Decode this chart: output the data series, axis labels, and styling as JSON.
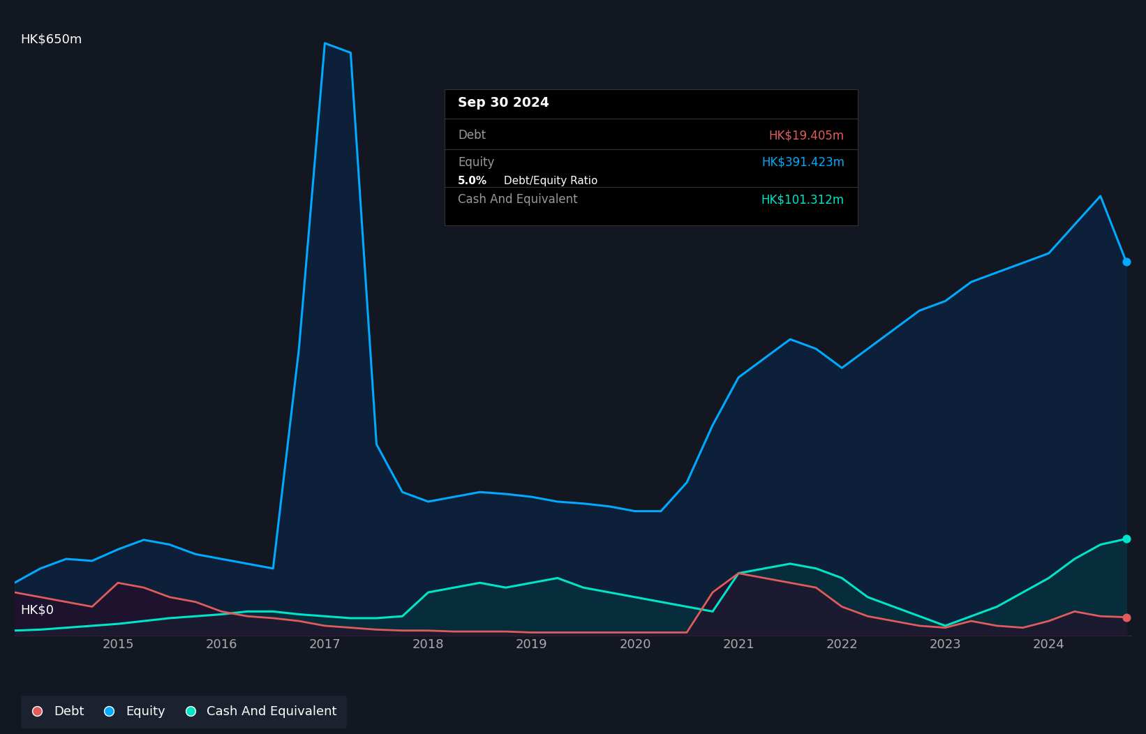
{
  "bg_color": "#131722",
  "plot_bg_color": "#131722",
  "grid_color": "#2a2e39",
  "ylabel_top": "HK$650m",
  "ylabel_bottom": "HK$0",
  "x_ticks": [
    2015,
    2016,
    2017,
    2018,
    2019,
    2020,
    2021,
    2022,
    2023,
    2024
  ],
  "debt_color": "#e05c5c",
  "equity_color": "#00aaff",
  "cash_color": "#00e5c8",
  "equity_fill_color": "#003366",
  "cash_fill_color": "#004040",
  "debt_fill_color": "#3a0020",
  "tooltip_bg": "#000000",
  "tooltip_date": "Sep 30 2024",
  "tooltip_debt_label": "Debt",
  "tooltip_debt_value": "HK$19.405m",
  "tooltip_equity_label": "Equity",
  "tooltip_equity_value": "HK$391.423m",
  "tooltip_ratio_bold": "5.0%",
  "tooltip_ratio_rest": " Debt/Equity Ratio",
  "tooltip_cash_label": "Cash And Equivalent",
  "tooltip_cash_value": "HK$101.312m",
  "legend_labels": [
    "Debt",
    "Equity",
    "Cash And Equivalent"
  ],
  "ylim": [
    0,
    650
  ],
  "time_data": {
    "dates": [
      2014.0,
      2014.25,
      2014.5,
      2014.75,
      2015.0,
      2015.25,
      2015.5,
      2015.75,
      2016.0,
      2016.25,
      2016.5,
      2016.75,
      2017.0,
      2017.25,
      2017.5,
      2017.75,
      2018.0,
      2018.25,
      2018.5,
      2018.75,
      2019.0,
      2019.25,
      2019.5,
      2019.75,
      2020.0,
      2020.25,
      2020.5,
      2020.75,
      2021.0,
      2021.25,
      2021.5,
      2021.75,
      2022.0,
      2022.25,
      2022.5,
      2022.75,
      2023.0,
      2023.25,
      2023.5,
      2023.75,
      2024.0,
      2024.25,
      2024.5,
      2024.75
    ],
    "equity": [
      55,
      70,
      80,
      78,
      90,
      100,
      95,
      85,
      80,
      75,
      70,
      300,
      620,
      610,
      200,
      150,
      140,
      145,
      150,
      148,
      145,
      140,
      138,
      135,
      130,
      130,
      160,
      220,
      270,
      290,
      310,
      300,
      280,
      300,
      320,
      340,
      350,
      370,
      380,
      390,
      400,
      430,
      460,
      391
    ],
    "debt": [
      45,
      40,
      35,
      30,
      55,
      50,
      40,
      35,
      25,
      20,
      18,
      15,
      10,
      8,
      6,
      5,
      5,
      4,
      4,
      4,
      3,
      3,
      3,
      3,
      3,
      3,
      3,
      45,
      65,
      60,
      55,
      50,
      30,
      20,
      15,
      10,
      8,
      15,
      10,
      8,
      15,
      25,
      20,
      19
    ],
    "cash": [
      5,
      6,
      8,
      10,
      12,
      15,
      18,
      20,
      22,
      25,
      25,
      22,
      20,
      18,
      18,
      20,
      45,
      50,
      55,
      50,
      55,
      60,
      50,
      45,
      40,
      35,
      30,
      25,
      65,
      70,
      75,
      70,
      60,
      40,
      30,
      20,
      10,
      20,
      30,
      45,
      60,
      80,
      95,
      101
    ]
  }
}
